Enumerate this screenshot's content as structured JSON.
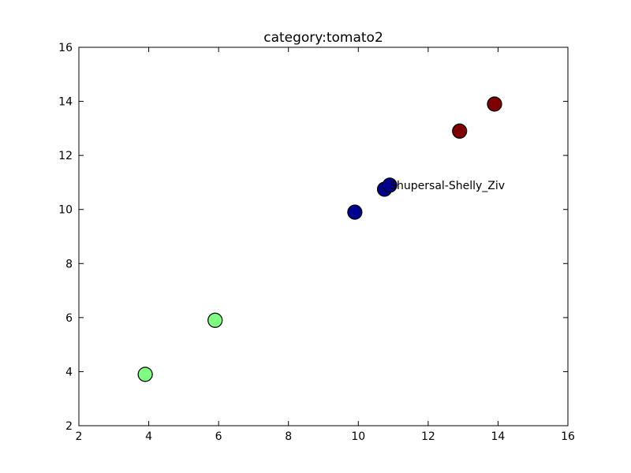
{
  "chart_data": {
    "type": "scatter",
    "title": "category:tomato2",
    "xlabel": "",
    "ylabel": "",
    "xlim": [
      2,
      16
    ],
    "ylim": [
      2,
      16
    ],
    "x_ticks": [
      2,
      4,
      6,
      8,
      10,
      12,
      14,
      16
    ],
    "y_ticks": [
      2,
      4,
      6,
      8,
      10,
      12,
      14,
      16
    ],
    "grid": false,
    "points": [
      {
        "x": 3.9,
        "y": 3.9,
        "color": "#7fff7f"
      },
      {
        "x": 5.9,
        "y": 5.9,
        "color": "#7fff7f"
      },
      {
        "x": 9.9,
        "y": 9.9,
        "color": "#00008f"
      },
      {
        "x": 10.75,
        "y": 10.75,
        "color": "#00008f"
      },
      {
        "x": 10.9,
        "y": 10.9,
        "color": "#00008f"
      },
      {
        "x": 12.9,
        "y": 12.9,
        "color": "#7f0000"
      },
      {
        "x": 13.9,
        "y": 13.9,
        "color": "#7f0000"
      }
    ],
    "annotations": [
      {
        "text": "Shupersal-Shelly_Ziv",
        "x": 10.9,
        "y": 10.9
      }
    ]
  }
}
